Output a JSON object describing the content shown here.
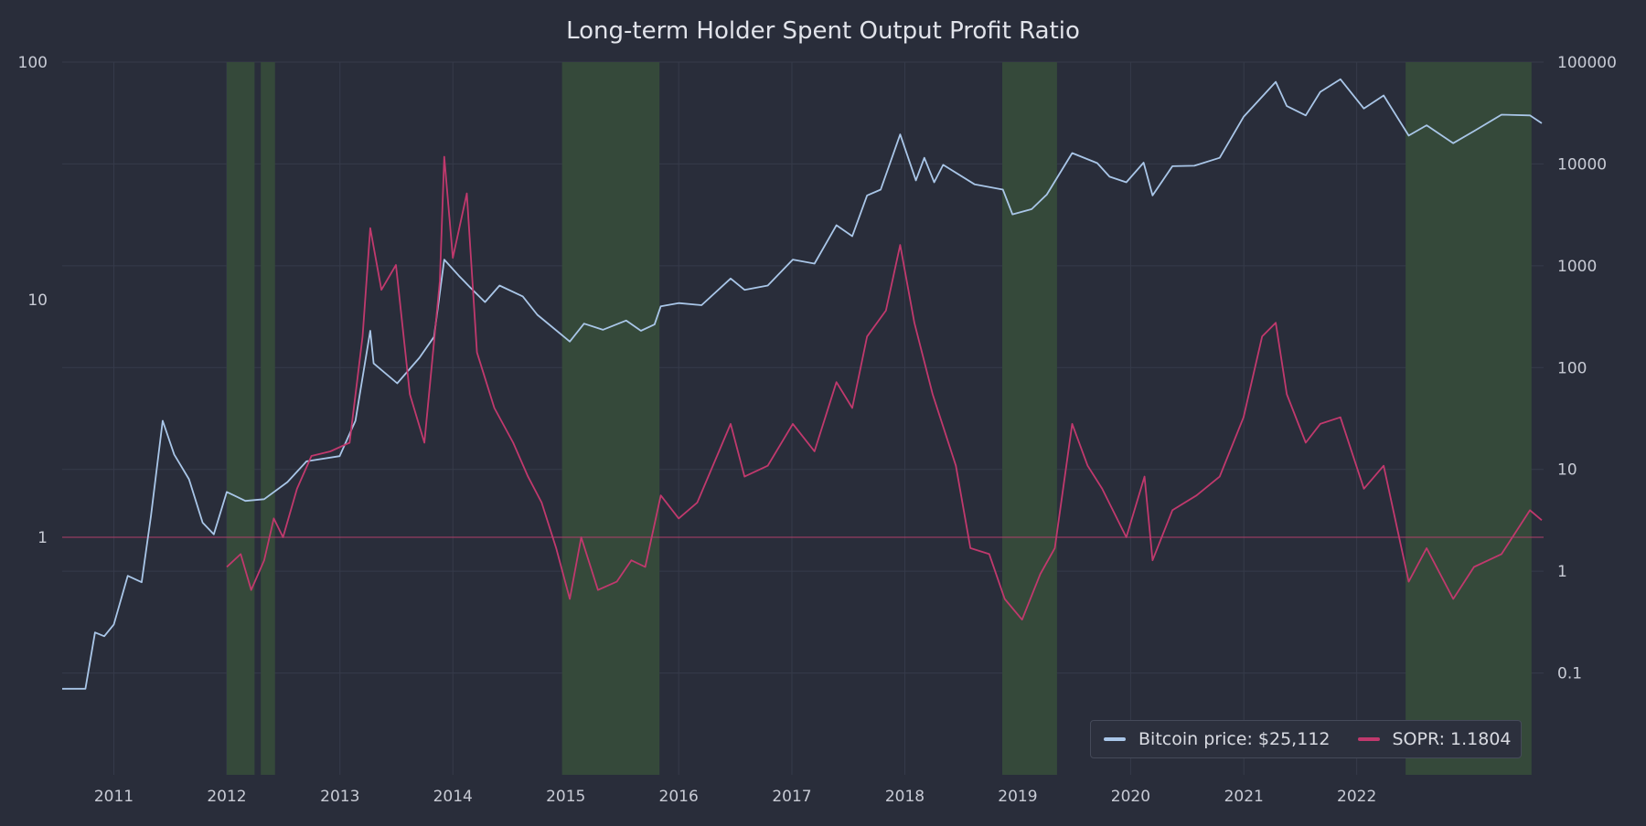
{
  "chart_data": {
    "type": "line",
    "title": "Long-term Holder Spent Output Profit Ratio",
    "x_axis": {
      "range": [
        "2010-07-18",
        "2023-08-28"
      ],
      "tick_labels": [
        "2011",
        "2012",
        "2013",
        "2014",
        "2015",
        "2016",
        "2017",
        "2018",
        "2019",
        "2020",
        "2021",
        "2022"
      ]
    },
    "y_left": {
      "scale": "log",
      "range": [
        0.1,
        100
      ],
      "tick_labels": [
        "1",
        "10",
        "100"
      ],
      "tick_values": [
        1,
        10,
        100
      ]
    },
    "y_right": {
      "scale": "log",
      "range": [
        0.01,
        100000
      ],
      "tick_labels": [
        "0.1",
        "1",
        "10",
        "100",
        "1000",
        "10000",
        "100000"
      ],
      "tick_values": [
        0.1,
        1,
        10,
        100,
        1000,
        10000,
        100000
      ]
    },
    "grid": true,
    "reference_line": {
      "axis": "left",
      "value": 1,
      "color": "#b0406a"
    },
    "legend_position": "bottom-right",
    "shaded_periods": [
      [
        "2012-01-01",
        "2012-03-31"
      ],
      [
        "2012-04-20",
        "2012-06-05"
      ],
      [
        "2014-12-20",
        "2015-10-31"
      ],
      [
        "2018-11-12",
        "2019-05-08"
      ],
      [
        "2022-06-08",
        "2023-07-20"
      ]
    ],
    "series": [
      {
        "name": "Bitcoin price: $25,112",
        "axis": "right",
        "color": "#a9c6e8",
        "points": [
          [
            "2010-07-18",
            0.07
          ],
          [
            "2010-10-01",
            0.07
          ],
          [
            "2010-11-01",
            0.25
          ],
          [
            "2010-12-01",
            0.23
          ],
          [
            "2011-01-01",
            0.3
          ],
          [
            "2011-02-15",
            0.9
          ],
          [
            "2011-04-01",
            0.78
          ],
          [
            "2011-05-01",
            3.5
          ],
          [
            "2011-06-08",
            30
          ],
          [
            "2011-07-15",
            14
          ],
          [
            "2011-09-01",
            8
          ],
          [
            "2011-10-15",
            3
          ],
          [
            "2011-11-20",
            2.3
          ],
          [
            "2012-01-01",
            6
          ],
          [
            "2012-03-01",
            4.9
          ],
          [
            "2012-05-01",
            5.1
          ],
          [
            "2012-07-15",
            7.5
          ],
          [
            "2012-09-15",
            12
          ],
          [
            "2012-12-31",
            13.5
          ],
          [
            "2013-02-20",
            30
          ],
          [
            "2013-04-09",
            230
          ],
          [
            "2013-04-20",
            110
          ],
          [
            "2013-07-05",
            70
          ],
          [
            "2013-09-15",
            125
          ],
          [
            "2013-11-01",
            200
          ],
          [
            "2013-12-04",
            1150
          ],
          [
            "2014-01-20",
            800
          ],
          [
            "2014-03-01",
            600
          ],
          [
            "2014-04-15",
            440
          ],
          [
            "2014-06-01",
            640
          ],
          [
            "2014-08-15",
            500
          ],
          [
            "2014-10-01",
            330
          ],
          [
            "2015-01-14",
            180
          ],
          [
            "2015-03-01",
            270
          ],
          [
            "2015-05-01",
            235
          ],
          [
            "2015-07-15",
            290
          ],
          [
            "2015-09-01",
            230
          ],
          [
            "2015-10-15",
            265
          ],
          [
            "2015-11-04",
            400
          ],
          [
            "2016-01-01",
            430
          ],
          [
            "2016-03-15",
            410
          ],
          [
            "2016-06-17",
            750
          ],
          [
            "2016-08-01",
            580
          ],
          [
            "2016-10-15",
            640
          ],
          [
            "2017-01-04",
            1150
          ],
          [
            "2017-03-15",
            1050
          ],
          [
            "2017-05-25",
            2500
          ],
          [
            "2017-07-15",
            1950
          ],
          [
            "2017-09-01",
            4900
          ],
          [
            "2017-10-15",
            5600
          ],
          [
            "2017-12-17",
            19500
          ],
          [
            "2018-02-06",
            6900
          ],
          [
            "2018-03-05",
            11500
          ],
          [
            "2018-04-06",
            6600
          ],
          [
            "2018-05-05",
            9800
          ],
          [
            "2018-08-15",
            6300
          ],
          [
            "2018-11-14",
            5600
          ],
          [
            "2018-12-15",
            3200
          ],
          [
            "2019-02-15",
            3600
          ],
          [
            "2019-04-05",
            5000
          ],
          [
            "2019-06-26",
            12800
          ],
          [
            "2019-09-15",
            10200
          ],
          [
            "2019-10-25",
            7500
          ],
          [
            "2019-12-18",
            6600
          ],
          [
            "2020-02-12",
            10300
          ],
          [
            "2020-03-12",
            4900
          ],
          [
            "2020-05-15",
            9500
          ],
          [
            "2020-07-25",
            9600
          ],
          [
            "2020-10-15",
            11500
          ],
          [
            "2020-12-31",
            29000
          ],
          [
            "2021-04-14",
            64000
          ],
          [
            "2021-05-20",
            37000
          ],
          [
            "2021-07-20",
            30000
          ],
          [
            "2021-09-05",
            51000
          ],
          [
            "2021-11-09",
            68000
          ],
          [
            "2022-01-24",
            35000
          ],
          [
            "2022-03-29",
            47000
          ],
          [
            "2022-06-18",
            19000
          ],
          [
            "2022-08-15",
            24000
          ],
          [
            "2022-11-09",
            16000
          ],
          [
            "2023-01-15",
            21000
          ],
          [
            "2023-04-14",
            30500
          ],
          [
            "2023-07-15",
            30000
          ],
          [
            "2023-08-22",
            25112
          ]
        ]
      },
      {
        "name": "SOPR: 1.1804",
        "axis": "left",
        "color": "#c0396d",
        "points": [
          [
            "2012-01-01",
            0.75
          ],
          [
            "2012-02-15",
            0.85
          ],
          [
            "2012-03-20",
            0.6
          ],
          [
            "2012-05-01",
            0.8
          ],
          [
            "2012-06-01",
            1.2
          ],
          [
            "2012-07-01",
            1.0
          ],
          [
            "2012-08-15",
            1.6
          ],
          [
            "2012-10-01",
            2.2
          ],
          [
            "2012-12-01",
            2.3
          ],
          [
            "2013-02-01",
            2.5
          ],
          [
            "2013-03-15",
            7
          ],
          [
            "2013-04-09",
            20
          ],
          [
            "2013-05-15",
            11
          ],
          [
            "2013-07-01",
            14
          ],
          [
            "2013-08-15",
            4
          ],
          [
            "2013-10-01",
            2.5
          ],
          [
            "2013-11-20",
            12
          ],
          [
            "2013-12-04",
            40
          ],
          [
            "2014-01-01",
            15
          ],
          [
            "2014-02-15",
            28
          ],
          [
            "2014-03-20",
            6
          ],
          [
            "2014-05-15",
            3.5
          ],
          [
            "2014-07-15",
            2.5
          ],
          [
            "2014-09-01",
            1.8
          ],
          [
            "2014-10-15",
            1.4
          ],
          [
            "2014-12-01",
            0.9
          ],
          [
            "2015-01-14",
            0.55
          ],
          [
            "2015-02-20",
            1.0
          ],
          [
            "2015-04-15",
            0.6
          ],
          [
            "2015-06-15",
            0.65
          ],
          [
            "2015-08-01",
            0.8
          ],
          [
            "2015-09-15",
            0.75
          ],
          [
            "2015-11-04",
            1.5
          ],
          [
            "2016-01-01",
            1.2
          ],
          [
            "2016-03-01",
            1.4
          ],
          [
            "2016-06-17",
            3.0
          ],
          [
            "2016-08-01",
            1.8
          ],
          [
            "2016-10-15",
            2.0
          ],
          [
            "2017-01-04",
            3.0
          ],
          [
            "2017-03-15",
            2.3
          ],
          [
            "2017-05-25",
            4.5
          ],
          [
            "2017-07-15",
            3.5
          ],
          [
            "2017-09-01",
            7
          ],
          [
            "2017-11-01",
            9
          ],
          [
            "2017-12-17",
            17
          ],
          [
            "2018-02-01",
            8
          ],
          [
            "2018-04-01",
            4
          ],
          [
            "2018-06-15",
            2
          ],
          [
            "2018-08-01",
            0.9
          ],
          [
            "2018-10-01",
            0.85
          ],
          [
            "2018-11-20",
            0.55
          ],
          [
            "2019-01-15",
            0.45
          ],
          [
            "2019-03-15",
            0.7
          ],
          [
            "2019-05-01",
            0.9
          ],
          [
            "2019-06-26",
            3
          ],
          [
            "2019-08-15",
            2.0
          ],
          [
            "2019-10-01",
            1.6
          ],
          [
            "2019-12-18",
            1.0
          ],
          [
            "2020-02-15",
            1.8
          ],
          [
            "2020-03-12",
            0.8
          ],
          [
            "2020-05-15",
            1.3
          ],
          [
            "2020-08-01",
            1.5
          ],
          [
            "2020-10-15",
            1.8
          ],
          [
            "2020-12-31",
            3.2
          ],
          [
            "2021-03-01",
            7
          ],
          [
            "2021-04-14",
            8
          ],
          [
            "2021-05-20",
            4
          ],
          [
            "2021-07-20",
            2.5
          ],
          [
            "2021-09-05",
            3
          ],
          [
            "2021-11-09",
            3.2
          ],
          [
            "2022-01-24",
            1.6
          ],
          [
            "2022-03-29",
            2.0
          ],
          [
            "2022-06-18",
            0.65
          ],
          [
            "2022-08-15",
            0.9
          ],
          [
            "2022-11-09",
            0.55
          ],
          [
            "2023-01-15",
            0.75
          ],
          [
            "2023-04-14",
            0.85
          ],
          [
            "2023-07-15",
            1.3
          ],
          [
            "2023-08-22",
            1.1804
          ]
        ]
      }
    ]
  }
}
